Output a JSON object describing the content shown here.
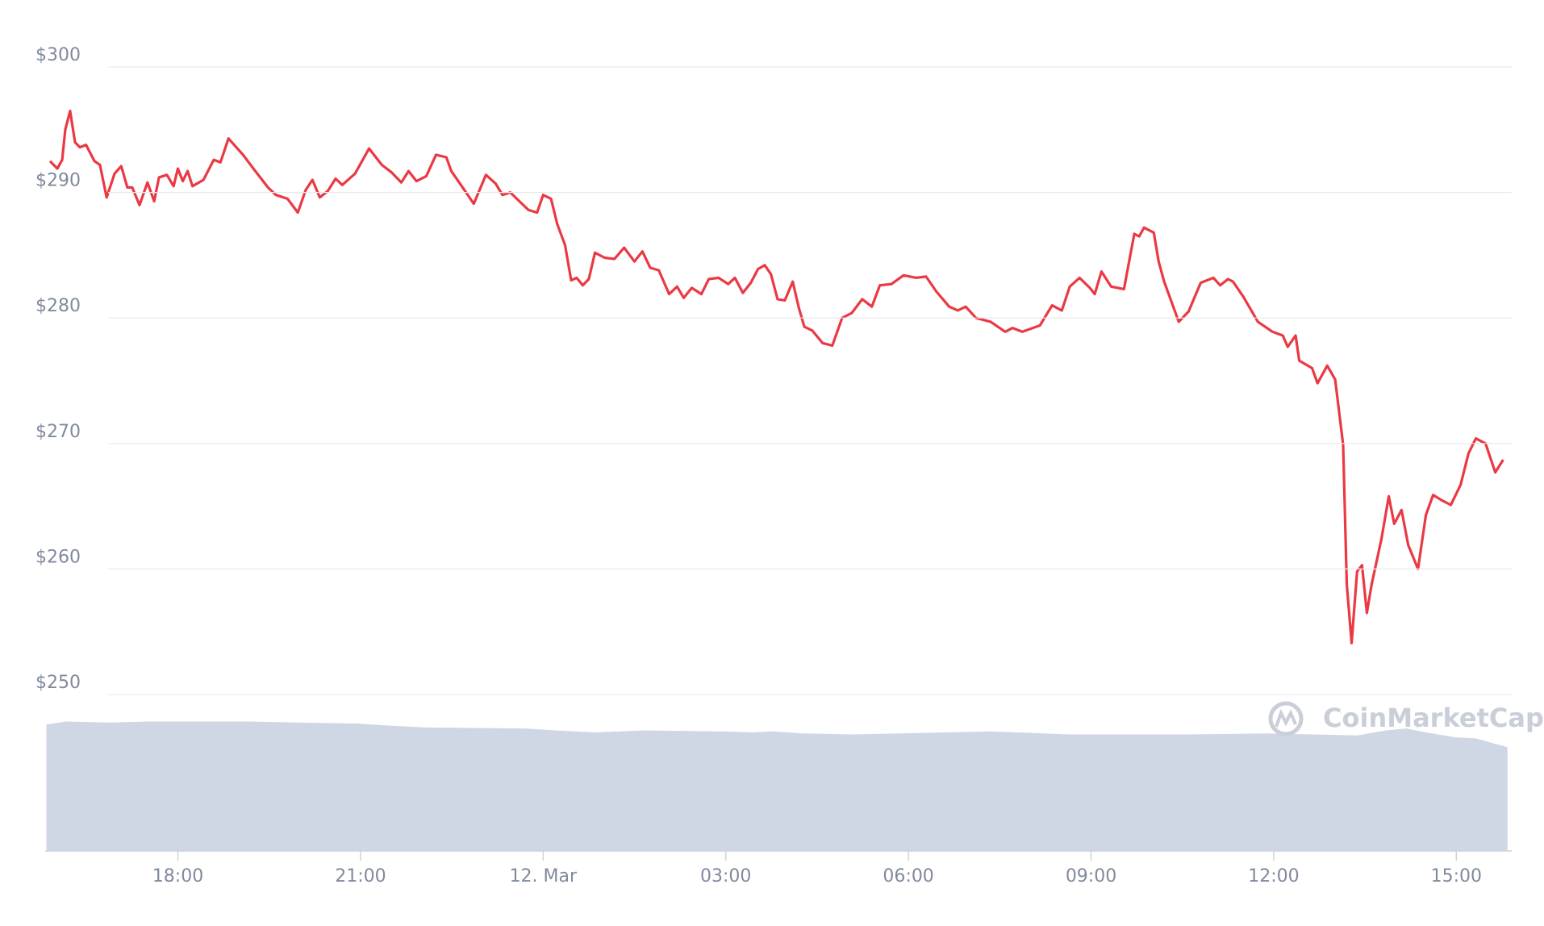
{
  "chart_data": {
    "type": "line",
    "watermark": "CoinMarketCap",
    "xlim": [
      -8.18,
      15.91
    ],
    "xticks": [
      {
        "value": -6,
        "label": "18:00"
      },
      {
        "value": -3,
        "label": "21:00"
      },
      {
        "value": 0,
        "label": "12. Mar"
      },
      {
        "value": 3,
        "label": "03:00"
      },
      {
        "value": 6,
        "label": "06:00"
      },
      {
        "value": 9,
        "label": "09:00"
      },
      {
        "value": 12,
        "label": "12:00"
      },
      {
        "value": 15,
        "label": "15:00"
      }
    ],
    "ylim": [
      250,
      300
    ],
    "yticks": [
      {
        "value": 250,
        "label": "$250"
      },
      {
        "value": 260,
        "label": "$260"
      },
      {
        "value": 270,
        "label": "$270"
      },
      {
        "value": 280,
        "label": "$280"
      },
      {
        "value": 290,
        "label": "$290"
      },
      {
        "value": 300,
        "label": "$300"
      }
    ],
    "y2lim": [
      0,
      160
    ],
    "grid": true,
    "series": [
      {
        "color": "#ea3943",
        "x": [
          -8.1,
          -7.98,
          -7.9,
          -7.85,
          -7.77,
          -7.69,
          -7.61,
          -7.51,
          -7.37,
          -7.28,
          -7.17,
          -7.04,
          -6.93,
          -6.83,
          -6.75,
          -6.63,
          -6.5,
          -6.39,
          -6.31,
          -6.18,
          -6.07,
          -6.0,
          -5.92,
          -5.84,
          -5.76,
          -5.58,
          -5.41,
          -5.3,
          -5.17,
          -4.93,
          -4.76,
          -4.52,
          -4.39,
          -4.2,
          -4.03,
          -3.9,
          -3.79,
          -3.67,
          -3.54,
          -3.41,
          -3.3,
          -3.09,
          -2.86,
          -2.65,
          -2.49,
          -2.33,
          -2.21,
          -2.08,
          -1.92,
          -1.76,
          -1.59,
          -1.51,
          -1.35,
          -1.14,
          -0.94,
          -0.78,
          -0.67,
          -0.54,
          -0.37,
          -0.24,
          -0.1,
          0,
          0.13,
          0.23,
          0.36,
          0.46,
          0.55,
          0.65,
          0.75,
          0.85,
          1.01,
          1.17,
          1.33,
          1.5,
          1.63,
          1.76,
          1.9,
          2.07,
          2.2,
          2.31,
          2.44,
          2.6,
          2.72,
          2.88,
          3.04,
          3.15,
          3.28,
          3.41,
          3.53,
          3.64,
          3.74,
          3.85,
          3.97,
          4.1,
          4.2,
          4.29,
          4.42,
          4.59,
          4.75,
          4.91,
          5.07,
          5.24,
          5.4,
          5.53,
          5.72,
          5.92,
          6.13,
          6.29,
          6.46,
          6.67,
          6.81,
          6.94,
          7.11,
          7.35,
          7.59,
          7.71,
          7.87,
          8.16,
          8.36,
          8.52,
          8.65,
          8.81,
          8.98,
          9.06,
          9.17,
          9.33,
          9.54,
          9.71,
          9.79,
          9.87,
          10.03,
          10.11,
          10.2,
          10.44,
          10.6,
          10.8,
          11.01,
          11.12,
          11.25,
          11.33,
          11.5,
          11.74,
          11.98,
          12.15,
          12.23,
          12.36,
          12.42,
          12.63,
          12.72,
          12.88,
          13.01,
          13.14,
          13.2,
          13.28,
          13.37,
          13.45,
          13.53,
          13.61,
          13.77,
          13.89,
          13.98,
          14.1,
          14.21,
          14.37,
          14.5,
          14.62,
          14.75,
          14.91,
          15.07,
          15.2,
          15.32,
          15.48,
          15.64,
          15.77
        ],
        "values": [
          292.5,
          291.9,
          292.6,
          295,
          296.5,
          294,
          293.6,
          293.8,
          292.5,
          292.2,
          289.6,
          291.5,
          292.1,
          290.4,
          290.4,
          289,
          290.8,
          289.3,
          291.2,
          291.4,
          290.5,
          291.9,
          290.9,
          291.7,
          290.5,
          291,
          292.6,
          292.4,
          294.3,
          293,
          291.9,
          290.4,
          289.8,
          289.5,
          288.4,
          290.2,
          291,
          289.6,
          290.1,
          291.1,
          290.6,
          291.5,
          293.5,
          292.2,
          291.6,
          290.8,
          291.7,
          290.9,
          291.3,
          293,
          292.8,
          291.7,
          290.6,
          289.1,
          291.4,
          290.7,
          289.8,
          290,
          289.2,
          288.6,
          288.4,
          289.8,
          289.5,
          287.5,
          285.8,
          283,
          283.2,
          282.6,
          283.1,
          285.2,
          284.8,
          284.7,
          285.6,
          284.5,
          285.3,
          284,
          283.8,
          281.9,
          282.5,
          281.6,
          282.4,
          281.9,
          283.1,
          283.2,
          282.7,
          283.2,
          282,
          282.8,
          283.9,
          284.2,
          283.5,
          281.5,
          281.4,
          282.9,
          280.8,
          279.3,
          279,
          278,
          277.8,
          280,
          280.4,
          281.5,
          280.9,
          282.6,
          282.7,
          283.4,
          283.2,
          283.3,
          282.1,
          280.9,
          280.6,
          280.9,
          280,
          279.7,
          278.9,
          279.2,
          278.9,
          279.4,
          281,
          280.6,
          282.5,
          283.2,
          282.4,
          281.9,
          283.7,
          282.5,
          282.3,
          286.7,
          286.5,
          287.2,
          286.8,
          284.5,
          282.9,
          279.7,
          280.5,
          282.8,
          283.2,
          282.6,
          283.1,
          282.9,
          281.7,
          279.7,
          278.9,
          278.6,
          277.7,
          278.6,
          276.6,
          276,
          274.8,
          276.2,
          275.1,
          269.9,
          258.8,
          254.1,
          259.8,
          260.3,
          256.5,
          258.8,
          262.4,
          265.8,
          263.6,
          264.7,
          261.9,
          260,
          264.3,
          265.9,
          265.5,
          265.1,
          266.7,
          269.2,
          270.4,
          270,
          267.7,
          268.7
        ]
      },
      {
        "type": "area",
        "axis": "y2",
        "color": "#cfd6e4",
        "x": [
          -8.16,
          -7.84,
          -7.12,
          -6.47,
          -4.85,
          -4.03,
          -3.06,
          -2.57,
          -1.92,
          -0.29,
          0.2,
          0.85,
          1.66,
          2.96,
          3.45,
          3.77,
          4.26,
          5.07,
          7.35,
          8.65,
          10.6,
          11.9,
          13.37,
          13.85,
          14.18,
          14.5,
          14.99,
          15.32,
          15.84
        ],
        "values": [
          128,
          131,
          130,
          131,
          131,
          130,
          129,
          127,
          125,
          124,
          122,
          120,
          122,
          121,
          120,
          121,
          119,
          118,
          121,
          118,
          118,
          119,
          117,
          122,
          124,
          120,
          115,
          114,
          105
        ]
      }
    ]
  }
}
